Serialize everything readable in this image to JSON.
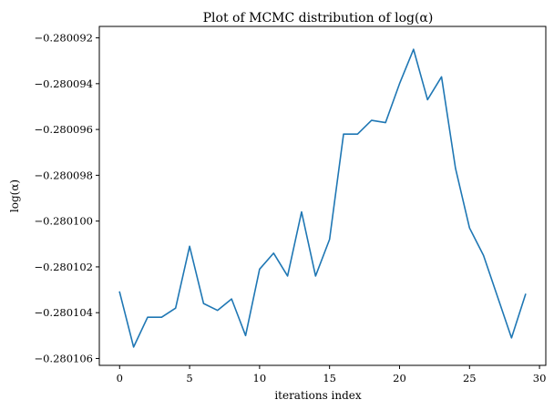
{
  "chart_data": {
    "type": "line",
    "title": "Plot of MCMC distribution of log(α)",
    "xlabel": "iterations index",
    "ylabel": "log(α)",
    "xlim": [
      -1.45,
      30.45
    ],
    "ylim": [
      -0.2801063,
      -0.2800915
    ],
    "xticks": [
      0,
      5,
      10,
      15,
      20,
      25,
      30
    ],
    "xtick_labels": [
      "0",
      "5",
      "10",
      "15",
      "20",
      "25",
      "30"
    ],
    "yticks": [
      -0.280092,
      -0.280094,
      -0.280096,
      -0.280098,
      -0.2801,
      -0.280102,
      -0.280104,
      -0.280106
    ],
    "ytick_labels": [
      "−0.280092",
      "−0.280094",
      "−0.280096",
      "−0.280098",
      "−0.280100",
      "−0.280102",
      "−0.280104",
      "−0.280106"
    ],
    "grid": false,
    "series_color": "#1f77b4",
    "x": [
      0,
      1,
      2,
      3,
      4,
      5,
      6,
      7,
      8,
      9,
      10,
      11,
      12,
      13,
      14,
      15,
      16,
      17,
      18,
      19,
      20,
      21,
      22,
      23,
      24,
      25,
      26,
      27,
      28,
      29
    ],
    "y": [
      -0.2801031,
      -0.2801055,
      -0.2801042,
      -0.2801042,
      -0.2801038,
      -0.2801011,
      -0.2801036,
      -0.2801039,
      -0.2801034,
      -0.280105,
      -0.2801021,
      -0.2801014,
      -0.2801024,
      -0.2800996,
      -0.2801024,
      -0.2801008,
      -0.2800962,
      -0.2800962,
      -0.2800956,
      -0.2800957,
      -0.280094,
      -0.2800925,
      -0.2800947,
      -0.2800937,
      -0.2800977,
      -0.2801003,
      -0.2801015,
      -0.2801033,
      -0.2801051,
      -0.2801032
    ]
  }
}
